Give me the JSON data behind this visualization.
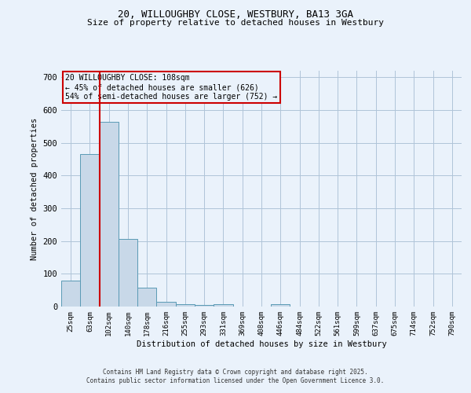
{
  "title1": "20, WILLOUGHBY CLOSE, WESTBURY, BA13 3GA",
  "title2": "Size of property relative to detached houses in Westbury",
  "xlabel": "Distribution of detached houses by size in Westbury",
  "ylabel": "Number of detached properties",
  "bin_labels": [
    "25sqm",
    "63sqm",
    "102sqm",
    "140sqm",
    "178sqm",
    "216sqm",
    "255sqm",
    "293sqm",
    "331sqm",
    "369sqm",
    "408sqm",
    "446sqm",
    "484sqm",
    "522sqm",
    "561sqm",
    "599sqm",
    "637sqm",
    "675sqm",
    "714sqm",
    "752sqm",
    "790sqm"
  ],
  "bin_values": [
    80,
    465,
    565,
    207,
    58,
    15,
    8,
    5,
    7,
    0,
    0,
    8,
    0,
    0,
    0,
    0,
    0,
    0,
    0,
    0,
    0
  ],
  "bar_color": "#c8d8e8",
  "bar_edge_color": "#5a9ab5",
  "property_line_color": "#cc0000",
  "annotation_text": "20 WILLOUGHBY CLOSE: 108sqm\n← 45% of detached houses are smaller (626)\n54% of semi-detached houses are larger (752) →",
  "annotation_box_color": "#cc0000",
  "ylim": [
    0,
    720
  ],
  "yticks": [
    0,
    100,
    200,
    300,
    400,
    500,
    600,
    700
  ],
  "grid_color": "#b0c4d8",
  "bg_color": "#eaf2fb",
  "footer1": "Contains HM Land Registry data © Crown copyright and database right 2025.",
  "footer2": "Contains public sector information licensed under the Open Government Licence 3.0."
}
